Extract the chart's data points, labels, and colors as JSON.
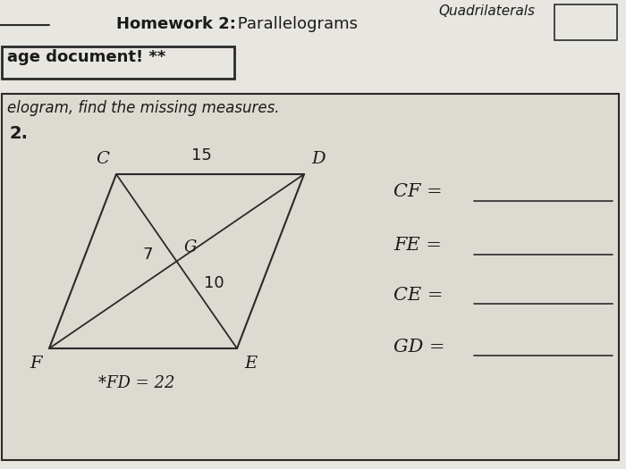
{
  "bg_color": "#c8c5bc",
  "paper_color": "#e8e6e0",
  "white_color": "#dddad2",
  "line_color": "#2a2a2a",
  "text_color": "#1a1a1a",
  "title_bold": "Homework 2:",
  "title_regular": " Parallelograms",
  "title2": "Quadrilaterals",
  "page_doc_text": "age document! **",
  "instruction": "elogram, find the missing measures.",
  "problem_num": "2.",
  "label_C": "C",
  "label_D": "D",
  "label_F": "F",
  "label_E": "E",
  "label_G": "G",
  "label_15": "15",
  "label_7": "7",
  "label_10": "10",
  "label_FD": "*FD = 22",
  "questions": [
    "CF =",
    "FE =",
    "CE =",
    "GD ="
  ]
}
